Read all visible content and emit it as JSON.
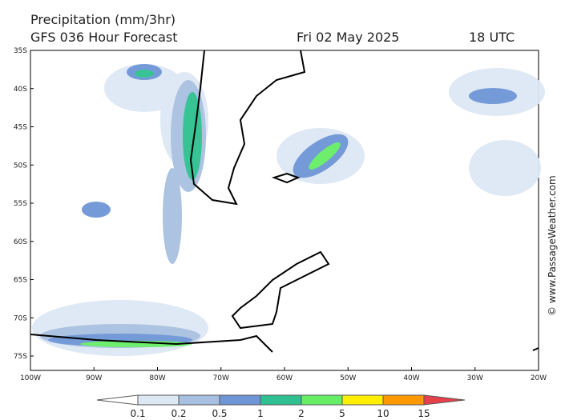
{
  "header": {
    "title": "Precipitation (mm/3hr)",
    "model": "GFS 036 Hour Forecast",
    "date": "Fri 02 May 2025",
    "time": "18 UTC"
  },
  "map": {
    "lat_labels": [
      "35S",
      "40S",
      "45S",
      "50S",
      "55S",
      "60S",
      "65S",
      "70S",
      "75S"
    ],
    "lon_labels": [
      "100W",
      "90W",
      "80W",
      "70W",
      "60W",
      "50W",
      "40W",
      "30W",
      "20W"
    ]
  },
  "legend": {
    "levels": [
      "0.1",
      "0.2",
      "0.5",
      "1",
      "2",
      "5",
      "10",
      "15"
    ],
    "colors": [
      "#ffffff",
      "#dde8f5",
      "#a8c0e0",
      "#6e95d6",
      "#2ec090",
      "#66ee66",
      "#ffee00",
      "#ff9900",
      "#e8404a"
    ]
  },
  "credit": "© www.PassageWeather.com"
}
